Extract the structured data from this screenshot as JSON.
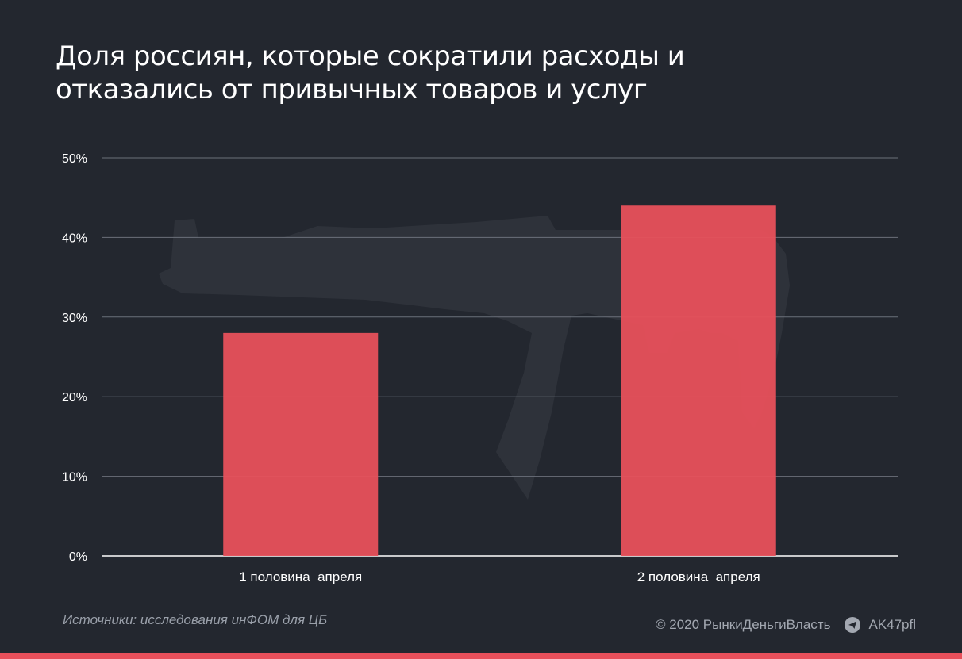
{
  "colors": {
    "background": "#23272f",
    "bar": "#e8505b",
    "grid": "#6b707a",
    "text": "#ffffff",
    "muted": "#a3a8b1",
    "watermark": "#2e323a"
  },
  "watermark_icon": "rifle-silhouette-icon",
  "telegram_icon": "paper-plane-icon",
  "chart_data": {
    "type": "bar",
    "title": "Доля россиян, которые сократили расходы и отказались от привычных товаров и услуг",
    "title_lines": [
      "Доля россиян, которые сократили расходы и",
      "отказались от привычных товаров и услуг"
    ],
    "categories": [
      "1 половина  апреля",
      "2 половина  апреля"
    ],
    "values": [
      28,
      44
    ],
    "value_suffix": "%",
    "ylim": [
      0,
      50
    ],
    "yticks": [
      0,
      10,
      20,
      30,
      40,
      50
    ],
    "ytick_labels": [
      "0%",
      "10%",
      "20%",
      "30%",
      "40%",
      "50%"
    ],
    "xlabel": "",
    "ylabel": "",
    "grid": true,
    "legend": "none"
  },
  "footer": {
    "source": "Источники: исследования инФОМ для ЦБ",
    "copyright": "© 2020  РынкиДеньгиВласть",
    "channel": "AK47pfl"
  }
}
